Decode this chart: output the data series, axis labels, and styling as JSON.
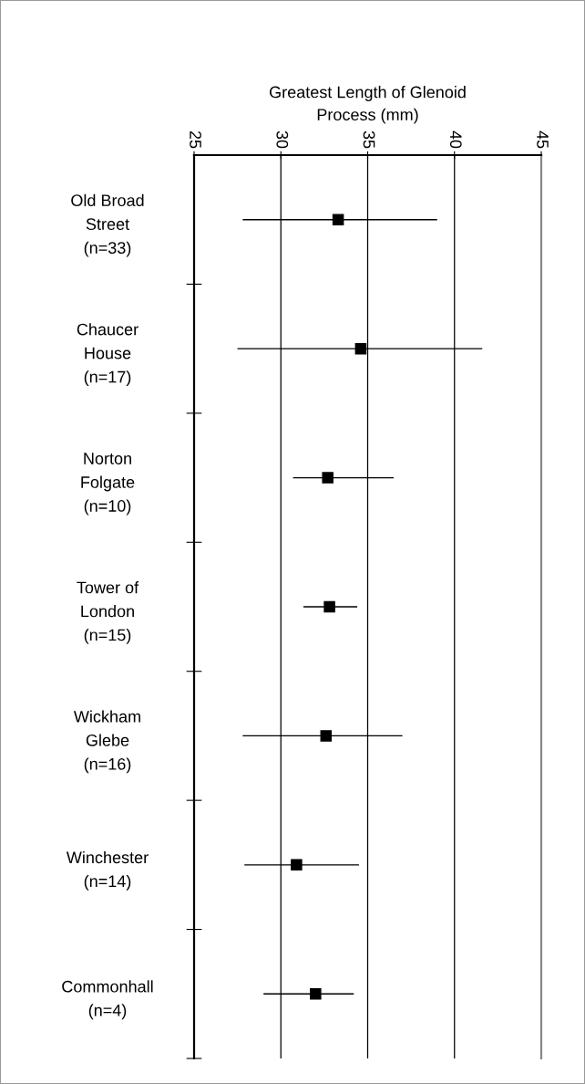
{
  "chart_data": {
    "type": "scatter",
    "orientation": "horizontal",
    "xlabel": "Greatest Length of Glenoid\nProcess (mm)",
    "categories": [
      "Old Broad\nStreet\n(n=33)",
      "Chaucer\nHouse\n(n=17)",
      "Norton\nFolgate\n(n=10)",
      "Tower of\nLondon\n(n=15)",
      "Wickham\nGlebe\n(n=16)",
      "Winchester\n(n=14)",
      "Commonhall\n(n=4)"
    ],
    "values": [
      33.3,
      34.6,
      32.7,
      32.8,
      32.6,
      30.9,
      32.0
    ],
    "errors": [
      [
        27.8,
        39.0
      ],
      [
        27.5,
        41.6
      ],
      [
        30.7,
        36.5
      ],
      [
        31.3,
        34.4
      ],
      [
        27.8,
        37.0
      ],
      [
        27.9,
        34.5
      ],
      [
        29.0,
        34.2
      ]
    ],
    "color": "#000000",
    "xlim": [
      25,
      45
    ],
    "xticks": [
      25,
      30,
      35,
      40,
      45
    ],
    "grid": "x",
    "marker": "square"
  }
}
